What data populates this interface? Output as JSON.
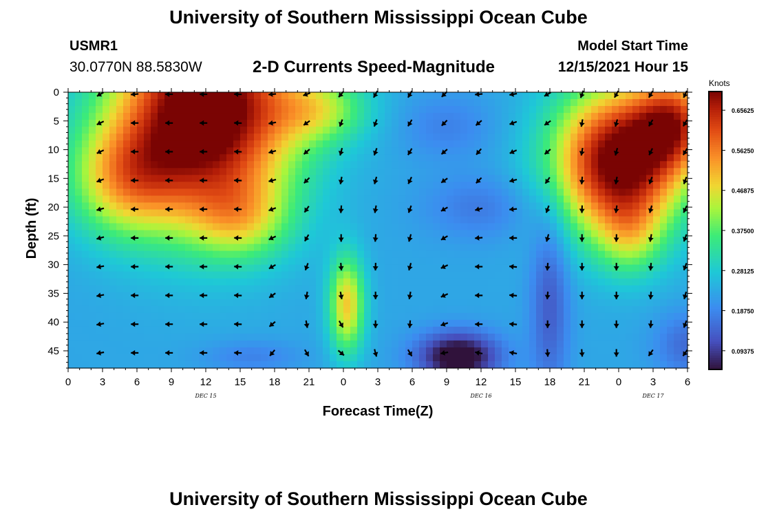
{
  "header": {
    "title": "University of Southern Mississippi Ocean Cube",
    "station": "USMR1",
    "coords": "30.0770N  88.5830W",
    "chart_title": "2-D Currents Speed-Magnitude",
    "model_start_label": "Model Start Time",
    "model_start_value": "12/15/2021 Hour 15"
  },
  "footer": {
    "title": "University of Southern Mississippi Ocean Cube"
  },
  "chart_data": {
    "type": "heatmap",
    "title": "2-D Currents Speed-Magnitude",
    "xlabel": "Forecast Time(Z)",
    "ylabel": "Depth (ft)",
    "x_hours_range": [
      0,
      54
    ],
    "ylim": [
      0,
      48
    ],
    "x_ticks": [
      {
        "hour": 0,
        "label": "0"
      },
      {
        "hour": 3,
        "label": "3"
      },
      {
        "hour": 6,
        "label": "6"
      },
      {
        "hour": 9,
        "label": "9"
      },
      {
        "hour": 12,
        "label": "12"
      },
      {
        "hour": 15,
        "label": "15"
      },
      {
        "hour": 18,
        "label": "18"
      },
      {
        "hour": 21,
        "label": "21"
      },
      {
        "hour": 24,
        "label": "0"
      },
      {
        "hour": 27,
        "label": "3"
      },
      {
        "hour": 30,
        "label": "6"
      },
      {
        "hour": 33,
        "label": "9"
      },
      {
        "hour": 36,
        "label": "12"
      },
      {
        "hour": 39,
        "label": "15"
      },
      {
        "hour": 42,
        "label": "18"
      },
      {
        "hour": 45,
        "label": "21"
      },
      {
        "hour": 48,
        "label": "0"
      },
      {
        "hour": 51,
        "label": "3"
      },
      {
        "hour": 54,
        "label": "6"
      }
    ],
    "date_labels": [
      {
        "hour": 12,
        "label": "DEC 15"
      },
      {
        "hour": 36,
        "label": "DEC 16"
      },
      {
        "hour": 51,
        "label": "DEC 17"
      }
    ],
    "y_ticks": [
      0,
      5,
      10,
      15,
      20,
      25,
      30,
      35,
      40,
      45
    ],
    "colorbar": {
      "unit": "Knots",
      "min": 0.05,
      "max": 0.7,
      "ticks": [
        "0.65625",
        "0.56250",
        "0.46875",
        "0.37500",
        "0.28125",
        "0.18750",
        "0.09375"
      ],
      "tick_values": [
        0.65625,
        0.5625,
        0.46875,
        0.375,
        0.28125,
        0.1875,
        0.09375
      ]
    },
    "speed_blobs": [
      {
        "x": 12,
        "y": 3,
        "sx": 5.5,
        "sy": 13,
        "amp": 0.55
      },
      {
        "x": 5,
        "y": 15,
        "sx": 3.5,
        "sy": 7,
        "amp": 0.22
      },
      {
        "x": 15,
        "y": 22,
        "sx": 3,
        "sy": 5,
        "amp": 0.15
      },
      {
        "x": 22,
        "y": 3,
        "sx": 3,
        "sy": 4,
        "amp": 0.15
      },
      {
        "x": 24.3,
        "y": 37,
        "sx": 1.1,
        "sy": 6,
        "amp": 0.26
      },
      {
        "x": 48,
        "y": 12,
        "sx": 4,
        "sy": 9,
        "amp": 0.5
      },
      {
        "x": 53,
        "y": 5,
        "sx": 2.5,
        "sy": 6,
        "amp": 0.3
      },
      {
        "x": 49,
        "y": 25,
        "sx": 2,
        "sy": 5,
        "amp": 0.12
      },
      {
        "x": 34,
        "y": 46,
        "sx": 2.5,
        "sy": 3,
        "amp": -0.22
      },
      {
        "x": 42,
        "y": 36,
        "sx": 1.2,
        "sy": 12,
        "amp": -0.1
      },
      {
        "x": 36,
        "y": 20,
        "sx": 3.5,
        "sy": 4,
        "amp": -0.06
      },
      {
        "x": 33,
        "y": 6,
        "sx": 3,
        "sy": 4,
        "amp": -0.05
      },
      {
        "x": 16,
        "y": 46,
        "sx": 3,
        "sy": 2,
        "amp": -0.05
      },
      {
        "x": 54,
        "y": 44,
        "sx": 2,
        "sy": 4,
        "amp": -0.08
      }
    ],
    "speed_base": 0.23,
    "vector_hours": [
      2.8,
      5.8,
      8.8,
      11.8,
      14.8,
      17.8,
      20.8,
      23.8,
      26.8,
      29.8,
      32.8,
      35.8,
      38.8,
      41.8,
      44.8,
      47.8,
      50.8,
      53.8
    ],
    "vector_depths": [
      0,
      5,
      10,
      15,
      20,
      25,
      30,
      35,
      40,
      45
    ],
    "vector_angles_deg": [
      [
        210,
        185,
        180,
        180,
        178,
        185,
        200,
        230,
        240,
        240,
        225,
        185,
        190,
        210,
        250,
        240,
        240,
        245
      ],
      [
        205,
        180,
        180,
        180,
        178,
        190,
        215,
        250,
        250,
        240,
        225,
        220,
        200,
        215,
        260,
        255,
        240,
        240
      ],
      [
        205,
        180,
        180,
        180,
        178,
        195,
        220,
        255,
        250,
        240,
        220,
        230,
        205,
        220,
        260,
        255,
        245,
        240
      ],
      [
        200,
        180,
        180,
        180,
        178,
        195,
        225,
        260,
        255,
        245,
        215,
        225,
        195,
        235,
        265,
        260,
        250,
        250
      ],
      [
        195,
        180,
        180,
        180,
        178,
        200,
        235,
        265,
        260,
        250,
        210,
        195,
        185,
        250,
        268,
        262,
        255,
        245
      ],
      [
        195,
        180,
        180,
        180,
        178,
        205,
        240,
        270,
        265,
        255,
        210,
        185,
        180,
        255,
        270,
        268,
        260,
        250
      ],
      [
        190,
        180,
        180,
        180,
        178,
        210,
        250,
        275,
        268,
        255,
        205,
        180,
        175,
        265,
        270,
        270,
        265,
        250
      ],
      [
        190,
        180,
        180,
        180,
        178,
        215,
        260,
        280,
        270,
        260,
        205,
        180,
        175,
        265,
        270,
        270,
        265,
        255
      ],
      [
        190,
        180,
        180,
        180,
        178,
        220,
        280,
        300,
        270,
        265,
        200,
        180,
        175,
        270,
        270,
        270,
        265,
        250
      ],
      [
        190,
        180,
        180,
        180,
        178,
        230,
        300,
        320,
        285,
        300,
        190,
        170,
        170,
        275,
        275,
        270,
        235,
        235
      ]
    ]
  }
}
